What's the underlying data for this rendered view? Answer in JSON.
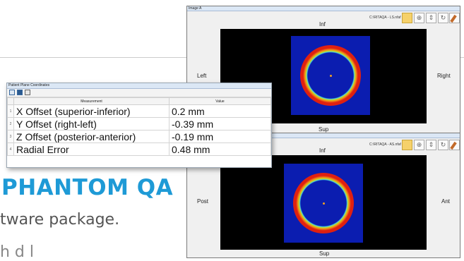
{
  "marketing": {
    "headline": "PHANTOM QA",
    "line1": "tware package.",
    "line2": "h  d  l"
  },
  "image_window_a": {
    "title": "Image A",
    "path": "C:\\RITAQA - LS.nfaf",
    "top_label": "Inf",
    "bottom_label": "Sup",
    "left_label": "Left",
    "right_label": "Right"
  },
  "image_window_b": {
    "path": "C:\\RITAQA - AS.nfaf",
    "top_label": "Inf",
    "bottom_label": "Sup",
    "left_label": "Post",
    "right_label": "Ant"
  },
  "patient_plane": {
    "title": "Patient Plane Coordinates",
    "columns": [
      "Measurement",
      "Value"
    ],
    "rows": [
      {
        "index": "1",
        "measurement": "X Offset (superior-inferior)",
        "value": "0.2 mm"
      },
      {
        "index": "2",
        "measurement": "Y Offset (right-left)",
        "value": "-0.39 mm"
      },
      {
        "index": "3",
        "measurement": "Z Offset (posterior-anterior)",
        "value": "-0.19 mm"
      },
      {
        "index": "4",
        "measurement": "Radial Error",
        "value": "0.48 mm"
      }
    ]
  },
  "icons": [
    "folder-icon",
    "pan-icon",
    "zoom-icon",
    "rotate-icon",
    "pencil-icon",
    "copy-icon",
    "save-icon",
    "print-icon"
  ],
  "colors": {
    "accent": "#1e9ad6",
    "field": "#0b1db0",
    "ring": "#e02010"
  }
}
